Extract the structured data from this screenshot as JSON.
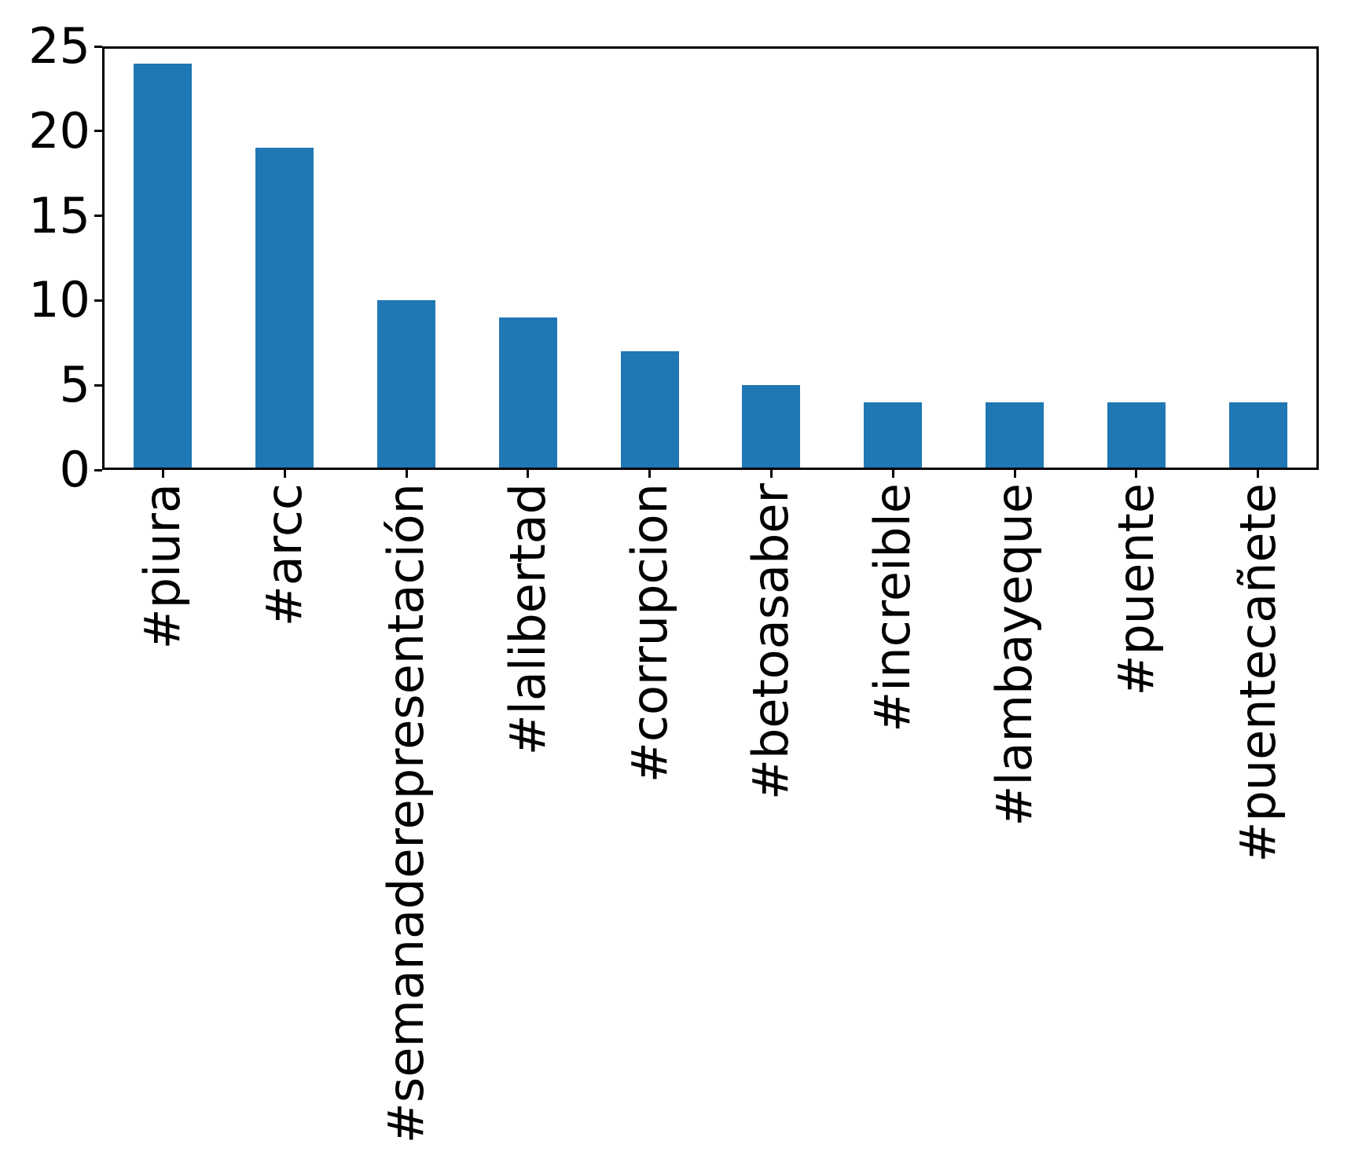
{
  "chart_data": {
    "type": "bar",
    "categories": [
      "#piura",
      "#arcc",
      "#semanaderepresentación",
      "#lalibertad",
      "#corrupcion",
      "#betoasaber",
      "#increible",
      "#lambayeque",
      "#puente",
      "#puentecañete"
    ],
    "values": [
      24,
      19,
      10,
      9,
      7,
      5,
      4,
      4,
      4,
      4
    ],
    "title": "",
    "xlabel": "",
    "ylabel": "",
    "ylim": [
      0,
      25
    ],
    "yticks": [
      0,
      5,
      10,
      15,
      20,
      25
    ],
    "xtick_rotation_deg": 90,
    "grid": false,
    "legend_position": "none",
    "colors": {
      "bar": "#1f77b4",
      "axis": "#000000",
      "tick_label": "#000000",
      "background": "#ffffff"
    }
  }
}
